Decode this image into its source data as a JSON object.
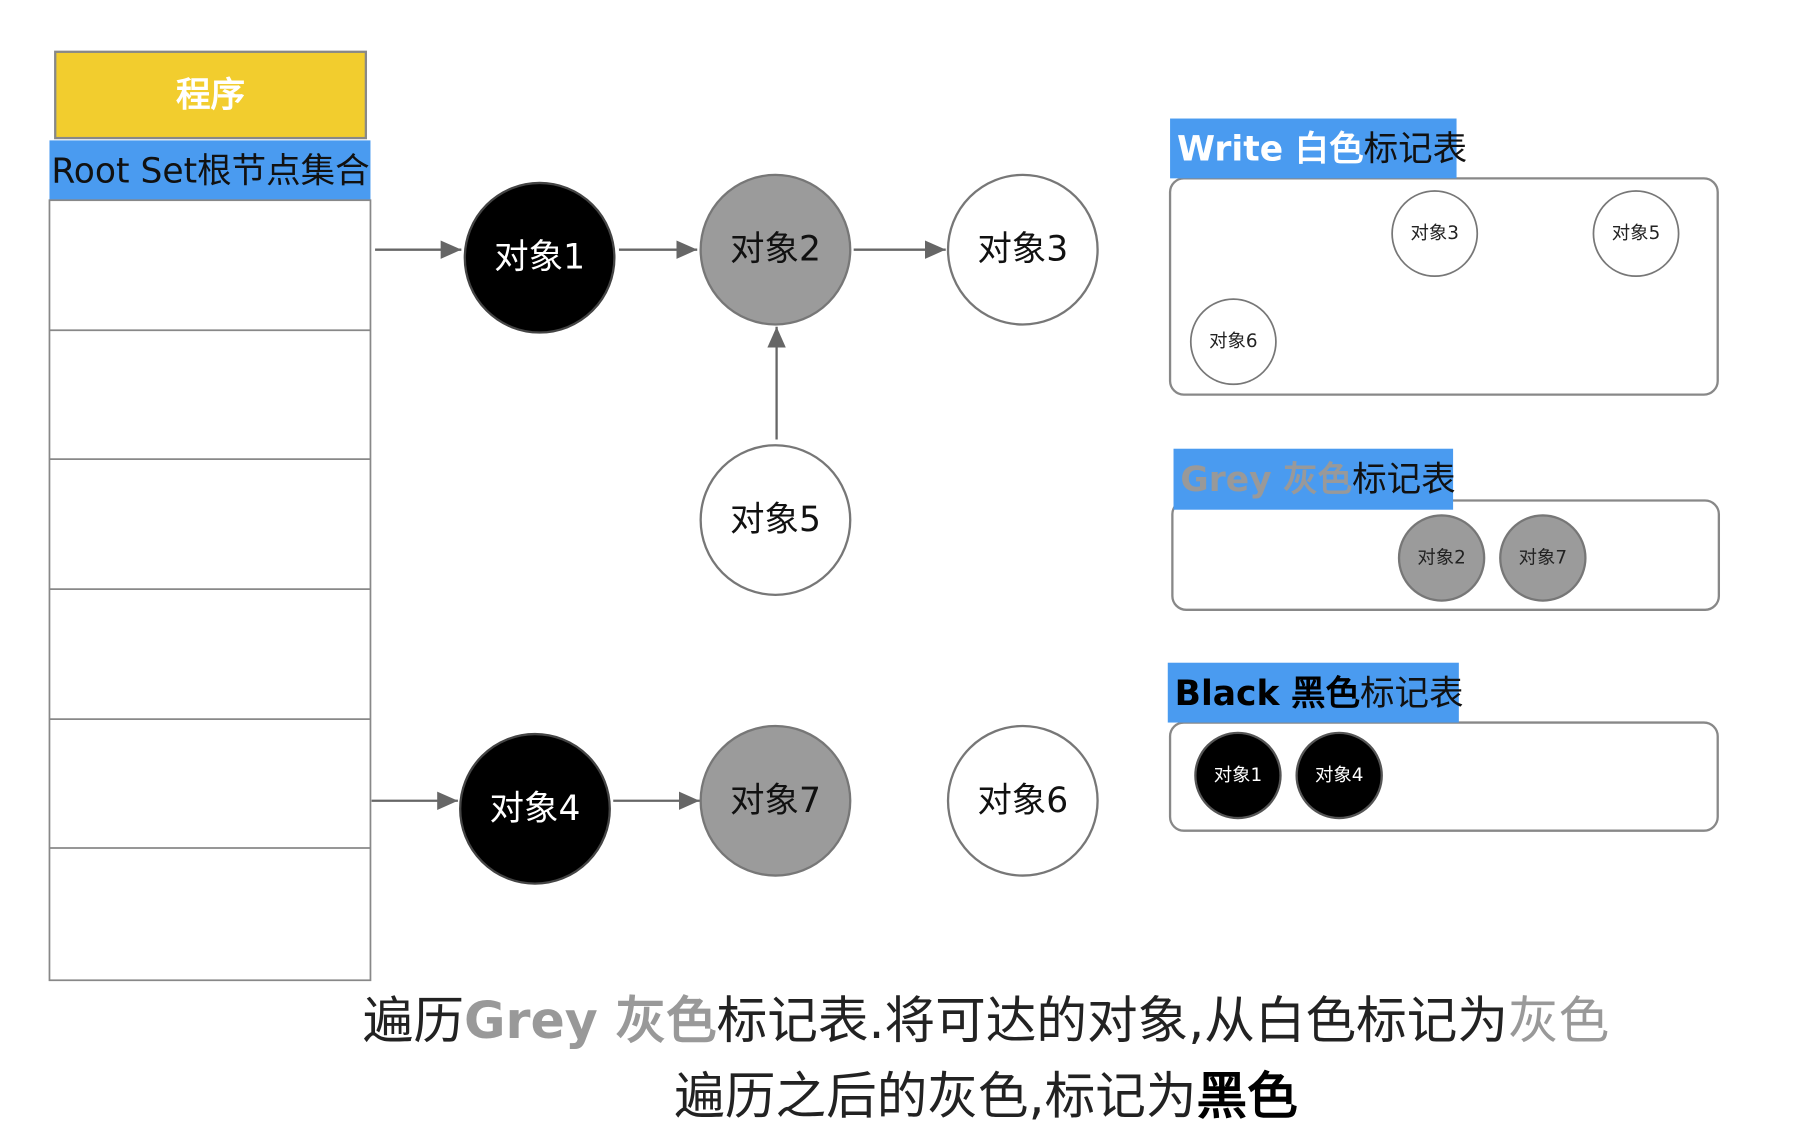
{
  "colors": {
    "program": "#F2CD2E",
    "header_blue": "#4A9BF0",
    "black": "#000000",
    "grey": "#9B9B9B",
    "white": "#FFFFFF",
    "stroke": "#777777",
    "grey_text": "#999999"
  },
  "program": {
    "label": "程序"
  },
  "root_set": {
    "label": "Root Set根节点集合"
  },
  "nodes": {
    "obj1": "对象1",
    "obj2": "对象2",
    "obj3": "对象3",
    "obj4": "对象4",
    "obj5": "对象5",
    "obj6": "对象6",
    "obj7": "对象7"
  },
  "tables": {
    "white": {
      "title_en": "Write",
      "title_color": "白色",
      "title_suffix": "标记表",
      "items": [
        "对象3",
        "对象5",
        "对象6"
      ]
    },
    "grey": {
      "title_en": "Grey",
      "title_color": "灰色",
      "title_suffix": "标记表",
      "items": [
        "对象2",
        "对象7"
      ]
    },
    "black": {
      "title_en": "Black",
      "title_color": "黑色",
      "title_suffix": "标记表",
      "items": [
        "对象1",
        "对象4"
      ]
    }
  },
  "caption": {
    "line1": {
      "p1": "遍历",
      "p2": "Grey 灰色",
      "p3": "标记表.将可达的对象,从白色标记为",
      "p4": "灰色"
    },
    "line2": {
      "p1": "遍历之后的灰色,标记为",
      "p2": "黑色"
    }
  }
}
